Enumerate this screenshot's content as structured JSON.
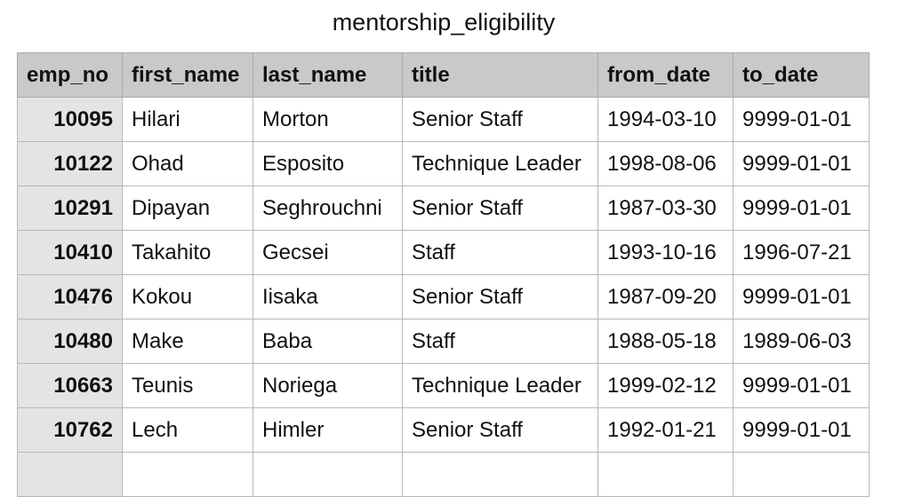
{
  "title": "mentorship_eligibility",
  "columns": [
    "emp_no",
    "first_name",
    "last_name",
    "title",
    "from_date",
    "to_date"
  ],
  "rows": [
    [
      "10095",
      "Hilari",
      "Morton",
      "Senior Staff",
      "1994-03-10",
      "9999-01-01"
    ],
    [
      "10122",
      "Ohad",
      "Esposito",
      "Technique Leader",
      "1998-08-06",
      "9999-01-01"
    ],
    [
      "10291",
      "Dipayan",
      "Seghrouchni",
      "Senior Staff",
      "1987-03-30",
      "9999-01-01"
    ],
    [
      "10410",
      "Takahito",
      "Gecsei",
      "Staff",
      "1993-10-16",
      "1996-07-21"
    ],
    [
      "10476",
      "Kokou",
      "Iisaka",
      "Senior Staff",
      "1987-09-20",
      "9999-01-01"
    ],
    [
      "10480",
      "Make",
      "Baba",
      "Staff",
      "1988-05-18",
      "1989-06-03"
    ],
    [
      "10663",
      "Teunis",
      "Noriega",
      "Technique Leader",
      "1999-02-12",
      "9999-01-01"
    ],
    [
      "10762",
      "Lech",
      "Himler",
      "Senior Staff",
      "1992-01-21",
      "9999-01-01"
    ],
    [
      "",
      "",
      "",
      "",
      "",
      ""
    ]
  ]
}
